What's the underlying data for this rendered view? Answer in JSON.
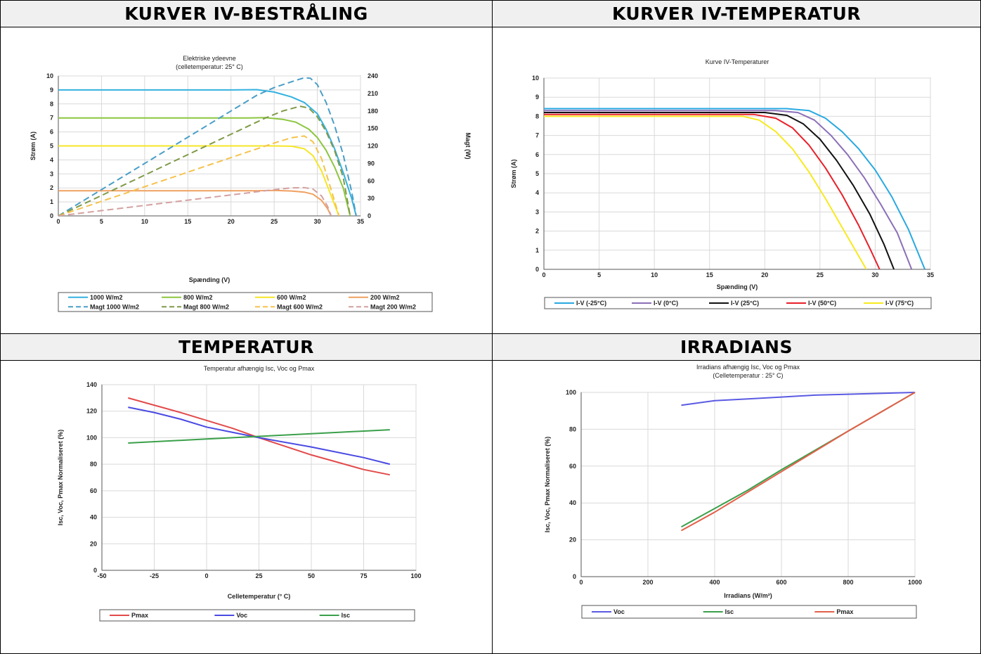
{
  "panels": [
    {
      "id": "p1",
      "heading": "KURVER IV-BESTRÅLING"
    },
    {
      "id": "p2",
      "heading": "KURVER IV-TEMPERATUR"
    },
    {
      "id": "p3",
      "heading": "TEMPERATUR"
    },
    {
      "id": "p4",
      "heading": "IRRADIANS"
    }
  ],
  "chart_data": [
    {
      "type": "line",
      "title": "Elektriske ydeevne",
      "subtitle": "(celletemperatur: 25° C)",
      "xlabel": "Spænding (V)",
      "ylabel": "Strøm (A)",
      "y2label": "Magt (W)",
      "xlim": [
        0,
        35
      ],
      "ylim": [
        0,
        10
      ],
      "y2lim": [
        0,
        240
      ],
      "xticks": [
        0,
        5,
        10,
        15,
        20,
        25,
        30,
        35
      ],
      "yticks": [
        0,
        1,
        2,
        3,
        4,
        5,
        6,
        7,
        8,
        9,
        10
      ],
      "y2ticks": [
        0,
        30,
        60,
        90,
        120,
        150,
        180,
        210,
        240
      ],
      "grid": true,
      "legend": "bottom",
      "series": [
        {
          "name": "1000 W/m2",
          "axis": "y",
          "dash": false,
          "color": "#33b1e0",
          "points": [
            [
              0,
              9
            ],
            [
              20,
              9
            ],
            [
              23,
              9.02
            ],
            [
              25,
              8.85
            ],
            [
              27,
              8.5
            ],
            [
              28.5,
              8.1
            ],
            [
              30,
              7.3
            ],
            [
              31,
              6.2
            ],
            [
              32,
              4.8
            ],
            [
              33,
              3.1
            ],
            [
              34,
              1.2
            ],
            [
              34.5,
              0
            ]
          ]
        },
        {
          "name": "800 W/m2",
          "axis": "y",
          "dash": false,
          "color": "#8cc63f",
          "points": [
            [
              0,
              7
            ],
            [
              22,
              7
            ],
            [
              24,
              7.02
            ],
            [
              26,
              6.9
            ],
            [
              27.5,
              6.7
            ],
            [
              29,
              6.2
            ],
            [
              30,
              5.6
            ],
            [
              31,
              4.7
            ],
            [
              32,
              3.5
            ],
            [
              33,
              2.0
            ],
            [
              33.8,
              0
            ]
          ]
        },
        {
          "name": "600 W/m2",
          "axis": "y",
          "dash": false,
          "color": "#f5e625",
          "points": [
            [
              0,
              5
            ],
            [
              25,
              5
            ],
            [
              27,
              4.98
            ],
            [
              28.5,
              4.8
            ],
            [
              29.5,
              4.3
            ],
            [
              30.5,
              3.2
            ],
            [
              31.5,
              1.6
            ],
            [
              32.5,
              0
            ]
          ]
        },
        {
          "name": "200 W/m2",
          "axis": "y",
          "dash": false,
          "color": "#f0a060",
          "points": [
            [
              0,
              1.8
            ],
            [
              23,
              1.8
            ],
            [
              25,
              1.82
            ],
            [
              27,
              1.78
            ],
            [
              28.5,
              1.7
            ],
            [
              29.5,
              1.55
            ],
            [
              30.5,
              1.1
            ],
            [
              31.2,
              0.5
            ],
            [
              31.6,
              0
            ]
          ]
        },
        {
          "name": "Magt 1000 W/m2",
          "axis": "y2",
          "dash": true,
          "color": "#4a9ec7",
          "points": [
            [
              0,
              0
            ],
            [
              5,
              45
            ],
            [
              10,
              90
            ],
            [
              15,
              135
            ],
            [
              20,
              180
            ],
            [
              23,
              207
            ],
            [
              25,
              220
            ],
            [
              27,
              230
            ],
            [
              28.5,
              237
            ],
            [
              29.2,
              236
            ],
            [
              30,
              225
            ],
            [
              31,
              195
            ],
            [
              32,
              155
            ],
            [
              33,
              105
            ],
            [
              34,
              40
            ],
            [
              34.5,
              0
            ]
          ]
        },
        {
          "name": "Magt 800 W/m2",
          "axis": "y2",
          "dash": true,
          "color": "#7f9a48",
          "points": [
            [
              0,
              0
            ],
            [
              5,
              35
            ],
            [
              10,
              70
            ],
            [
              15,
              105
            ],
            [
              20,
              140
            ],
            [
              24,
              168
            ],
            [
              26,
              180
            ],
            [
              28,
              188
            ],
            [
              29,
              185
            ],
            [
              30,
              170
            ],
            [
              31,
              145
            ],
            [
              32,
              112
            ],
            [
              33,
              66
            ],
            [
              33.8,
              0
            ]
          ]
        },
        {
          "name": "Magt 600 W/m2",
          "axis": "y2",
          "dash": true,
          "color": "#f5c24c",
          "points": [
            [
              0,
              0
            ],
            [
              5,
              25
            ],
            [
              10,
              50
            ],
            [
              15,
              75
            ],
            [
              20,
              100
            ],
            [
              25,
              125
            ],
            [
              27,
              134
            ],
            [
              28.5,
              137
            ],
            [
              29.5,
              127
            ],
            [
              30.5,
              98
            ],
            [
              31.5,
              50
            ],
            [
              32.5,
              0
            ]
          ]
        },
        {
          "name": "Magt 200 W/m2",
          "axis": "y2",
          "dash": true,
          "color": "#d4a0a0",
          "points": [
            [
              0,
              0
            ],
            [
              5,
              9
            ],
            [
              10,
              18
            ],
            [
              15,
              27
            ],
            [
              20,
              36
            ],
            [
              25,
              45
            ],
            [
              27,
              48
            ],
            [
              28.5,
              48.5
            ],
            [
              29.5,
              46
            ],
            [
              30.5,
              34
            ],
            [
              31.2,
              16
            ],
            [
              31.6,
              0
            ]
          ]
        }
      ]
    },
    {
      "type": "line",
      "title": "Kurve IV-Temperaturer",
      "xlabel": "Spænding (V)",
      "ylabel": "Strøm (A)",
      "xlim": [
        0,
        35
      ],
      "ylim": [
        0,
        10
      ],
      "xticks": [
        0,
        5,
        10,
        15,
        20,
        25,
        30,
        35
      ],
      "yticks": [
        0,
        1,
        2,
        3,
        4,
        5,
        6,
        7,
        8,
        9,
        10
      ],
      "grid": true,
      "legend": "bottom",
      "series": [
        {
          "name": "I-V (-25°C)",
          "color": "#28a9e1",
          "points": [
            [
              0,
              8.4
            ],
            [
              22,
              8.4
            ],
            [
              24,
              8.3
            ],
            [
              25.5,
              7.9
            ],
            [
              27,
              7.2
            ],
            [
              28.5,
              6.3
            ],
            [
              30,
              5.2
            ],
            [
              31.5,
              3.8
            ],
            [
              33,
              2.1
            ],
            [
              34.5,
              0
            ]
          ]
        },
        {
          "name": "I-V (0°C)",
          "color": "#8b6fb8",
          "points": [
            [
              0,
              8.3
            ],
            [
              21,
              8.3
            ],
            [
              23,
              8.2
            ],
            [
              24.5,
              7.8
            ],
            [
              26,
              7.0
            ],
            [
              27.5,
              6.0
            ],
            [
              29,
              4.8
            ],
            [
              30.5,
              3.4
            ],
            [
              32,
              1.9
            ],
            [
              33.3,
              0
            ]
          ]
        },
        {
          "name": "I-V (25°C)",
          "color": "#111111",
          "points": [
            [
              0,
              8.2
            ],
            [
              20,
              8.2
            ],
            [
              22,
              8.05
            ],
            [
              23.5,
              7.6
            ],
            [
              25,
              6.8
            ],
            [
              26.5,
              5.7
            ],
            [
              28,
              4.4
            ],
            [
              29.5,
              2.9
            ],
            [
              30.8,
              1.3
            ],
            [
              31.7,
              0
            ]
          ]
        },
        {
          "name": "I-V (50°C)",
          "color": "#e8202a",
          "points": [
            [
              0,
              8.1
            ],
            [
              19,
              8.1
            ],
            [
              21,
              7.9
            ],
            [
              22.5,
              7.4
            ],
            [
              24,
              6.5
            ],
            [
              25.5,
              5.3
            ],
            [
              27,
              3.9
            ],
            [
              28.5,
              2.3
            ],
            [
              29.6,
              1.0
            ],
            [
              30.4,
              0
            ]
          ]
        },
        {
          "name": "I-V (75°C)",
          "color": "#f7ea1e",
          "points": [
            [
              0,
              8.0
            ],
            [
              18,
              8.0
            ],
            [
              19.5,
              7.8
            ],
            [
              21,
              7.2
            ],
            [
              22.5,
              6.3
            ],
            [
              24,
              5.1
            ],
            [
              25.5,
              3.7
            ],
            [
              27,
              2.2
            ],
            [
              28.3,
              0.9
            ],
            [
              29.2,
              0
            ]
          ]
        }
      ]
    },
    {
      "type": "line",
      "title": "Temperatur afhængig Isc, Voc og Pmax",
      "xlabel": "Celletemperatur (° C)",
      "ylabel": "Isc, Voc, Pmax Normaliseret (%)",
      "xlim": [
        -50,
        100
      ],
      "ylim": [
        0,
        140
      ],
      "xticks": [
        -50,
        -25,
        0,
        25,
        50,
        75,
        100
      ],
      "yticks": [
        0,
        20,
        40,
        60,
        80,
        100,
        120,
        140
      ],
      "grid": true,
      "legend": "bottom",
      "series": [
        {
          "name": "Pmax",
          "color": "#e34a4a",
          "points": [
            [
              -37.5,
              130
            ],
            [
              -12.5,
              119
            ],
            [
              12.5,
              107
            ],
            [
              25,
              100
            ],
            [
              50,
              87
            ],
            [
              75,
              76
            ],
            [
              87.5,
              72
            ]
          ]
        },
        {
          "name": "Voc",
          "color": "#4a4ae3",
          "points": [
            [
              -37.5,
              123
            ],
            [
              -25,
              119
            ],
            [
              -12.5,
              114
            ],
            [
              0,
              108
            ],
            [
              12.5,
              104
            ],
            [
              25,
              100
            ],
            [
              50,
              93
            ],
            [
              75,
              85
            ],
            [
              87.5,
              80
            ]
          ]
        },
        {
          "name": "Isc",
          "color": "#3aa04a",
          "points": [
            [
              -37.5,
              96
            ],
            [
              0,
              99
            ],
            [
              25,
              101
            ],
            [
              50,
              103
            ],
            [
              87.5,
              106
            ]
          ]
        }
      ]
    },
    {
      "type": "line",
      "title": "Irradians afhængig Isc, Voc og Pmax",
      "subtitle": "(Celletemperatur : 25° C)",
      "xlabel": "Irradians (W/m²)",
      "ylabel": "Isc, Voc, Pmax Normaliseret (%)",
      "xlim": [
        0,
        1000
      ],
      "ylim": [
        0,
        100
      ],
      "xticks": [
        0,
        200,
        400,
        600,
        800,
        1000
      ],
      "yticks": [
        0,
        20,
        40,
        60,
        80,
        100
      ],
      "grid": true,
      "legend": "bottom",
      "series": [
        {
          "name": "Voc",
          "color": "#5a5ae3",
          "points": [
            [
              300,
              93
            ],
            [
              400,
              95.5
            ],
            [
              500,
              96.5
            ],
            [
              600,
              97.5
            ],
            [
              700,
              98.5
            ],
            [
              800,
              99
            ],
            [
              1000,
              100
            ]
          ]
        },
        {
          "name": "Isc",
          "color": "#3aa04a",
          "points": [
            [
              300,
              27
            ],
            [
              400,
              37
            ],
            [
              500,
              47
            ],
            [
              600,
              58
            ],
            [
              800,
              79
            ],
            [
              1000,
              100
            ]
          ]
        },
        {
          "name": "Pmax",
          "color": "#e3604a",
          "points": [
            [
              300,
              25
            ],
            [
              400,
              35
            ],
            [
              500,
              46
            ],
            [
              600,
              57
            ],
            [
              800,
              79
            ],
            [
              1000,
              100
            ]
          ]
        }
      ]
    }
  ]
}
